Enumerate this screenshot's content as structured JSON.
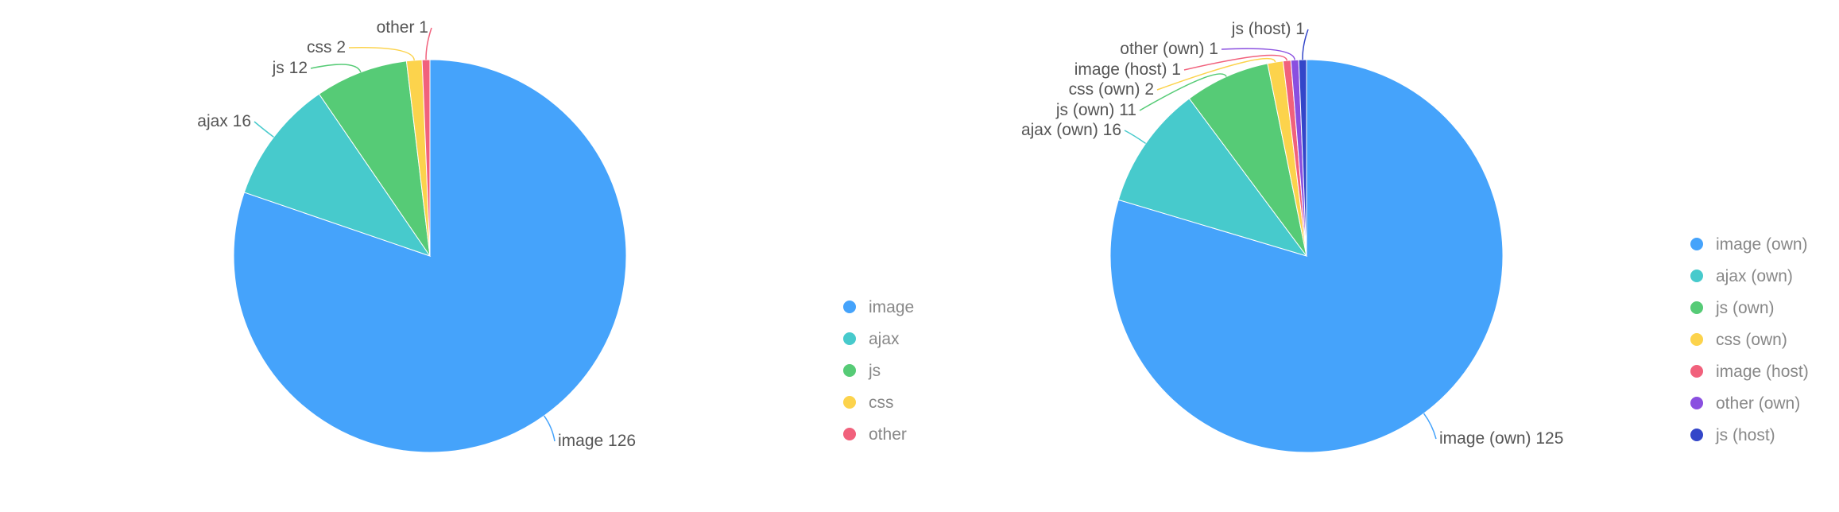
{
  "chart_data": [
    {
      "type": "pie",
      "title": "",
      "legend_position": "right",
      "categories": [
        "image",
        "ajax",
        "js",
        "css",
        "other"
      ],
      "values": [
        126,
        16,
        12,
        2,
        1
      ],
      "colors": [
        "#45a3fb",
        "#47cacc",
        "#56cb76",
        "#fcd34c",
        "#f1617c"
      ],
      "data_labels": [
        "image 126",
        "ajax 16",
        "js 12",
        "css 2",
        "other 1"
      ]
    },
    {
      "type": "pie",
      "title": "",
      "legend_position": "right",
      "categories": [
        "image (own)",
        "ajax (own)",
        "js (own)",
        "css (own)",
        "image (host)",
        "other (own)",
        "js (host)"
      ],
      "values": [
        125,
        16,
        11,
        2,
        1,
        1,
        1
      ],
      "colors": [
        "#45a3fb",
        "#47cacc",
        "#56cb76",
        "#fcd34c",
        "#f1617c",
        "#8a4fe0",
        "#3346c9"
      ],
      "data_labels": [
        "image (own) 125",
        "ajax (own) 16",
        "js (own) 11",
        "css (own) 2",
        "image (host) 1",
        "other (own) 1",
        "js (host) 1"
      ]
    }
  ]
}
